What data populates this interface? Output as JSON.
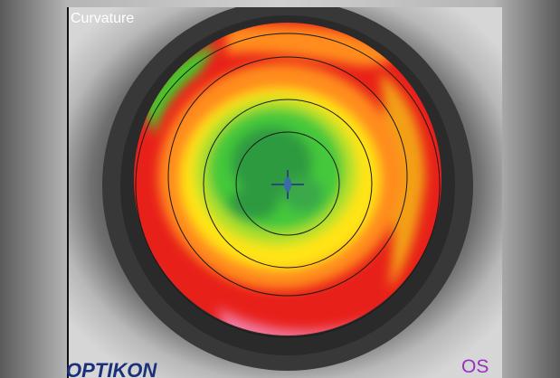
{
  "header": {
    "title": "Curvature"
  },
  "logo": {
    "text": "OPTIKON"
  },
  "eye": {
    "label": "OS"
  }
}
